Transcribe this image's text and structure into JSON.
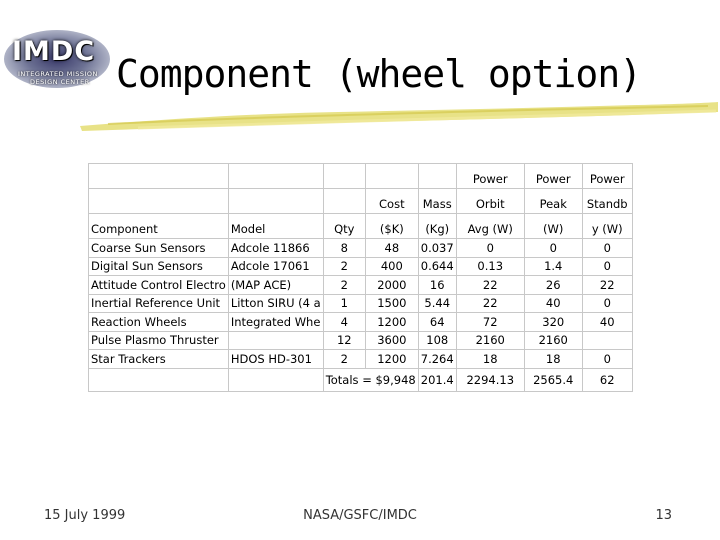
{
  "logo": {
    "mark": "IMDC",
    "line1": "INTEGRATED MISSION",
    "line2": "DESIGN CENTER"
  },
  "title": "Component (wheel option)",
  "table": {
    "headers": {
      "component": "Component",
      "model": "Model",
      "qty": "Qty",
      "cost": [
        "Cost",
        "($K)"
      ],
      "mass": [
        "Mass",
        "(Kg)"
      ],
      "orbit": [
        "Power",
        "Orbit",
        "Avg (W)"
      ],
      "peak": [
        "Power",
        "Peak",
        "(W)"
      ],
      "standby": [
        "Power",
        "Standb",
        "y (W)"
      ]
    },
    "rows": [
      {
        "component": "Coarse Sun Sensors",
        "model": "Adcole 11866",
        "qty": "8",
        "cost": "48",
        "mass": "0.037",
        "orbit": "0",
        "peak": "0",
        "standby": "0"
      },
      {
        "component": "Digital Sun Sensors",
        "model": "Adcole 17061",
        "qty": "2",
        "cost": "400",
        "mass": "0.644",
        "orbit": "0.13",
        "peak": "1.4",
        "standby": "0"
      },
      {
        "component": "Attitude Control Electro",
        "model": "(MAP ACE)",
        "qty": "2",
        "cost": "2000",
        "mass": "16",
        "orbit": "22",
        "peak": "26",
        "standby": "22"
      },
      {
        "component": "Inertial Reference Unit",
        "model": "Litton SIRU (4 a",
        "qty": "1",
        "cost": "1500",
        "mass": "5.44",
        "orbit": "22",
        "peak": "40",
        "standby": "0"
      },
      {
        "component": "Reaction Wheels",
        "model": "Integrated Whe",
        "qty": "4",
        "cost": "1200",
        "mass": "64",
        "orbit": "72",
        "peak": "320",
        "standby": "40"
      },
      {
        "component": "Pulse Plasmo Thruster",
        "model": "",
        "qty": "12",
        "cost": "3600",
        "mass": "108",
        "orbit": "2160",
        "peak": "2160",
        "standby": ""
      },
      {
        "component": "Star Trackers",
        "model": "HDOS HD-301",
        "qty": "2",
        "cost": "1200",
        "mass": "7.264",
        "orbit": "18",
        "peak": "18",
        "standby": "0"
      }
    ],
    "totals": {
      "label": "Totals =",
      "cost": "$9,948",
      "mass": "201.4",
      "orbit": "2294.13",
      "peak": "2565.4",
      "standby": "62"
    }
  },
  "footer": {
    "date": "15 July 1999",
    "center": "NASA/GSFC/IMDC",
    "page": "13"
  },
  "colors": {
    "brush": "#e6df7a",
    "text_blue": "#000080"
  }
}
